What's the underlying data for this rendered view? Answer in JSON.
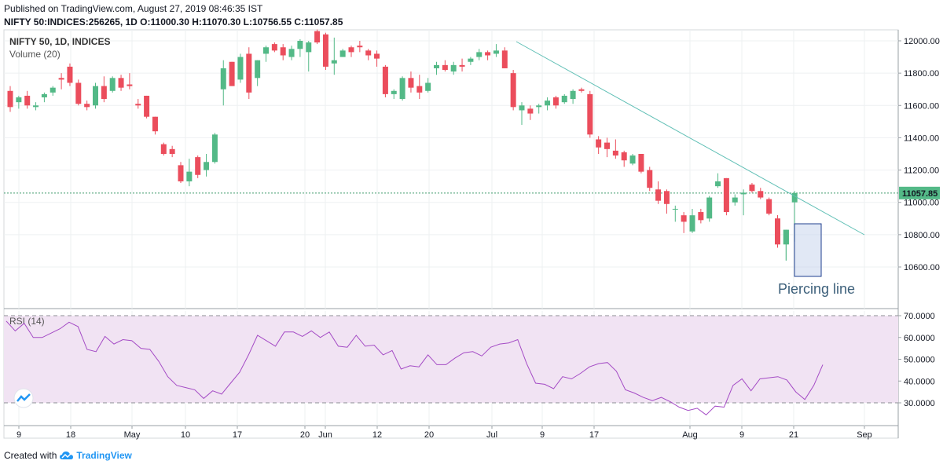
{
  "header": {
    "published_line": "Published on TradingView.com, August 27, 2019 08:46:35 IST",
    "symbol_line": "NIFTY 50:INDICES:256265, 1D  O:11000.30 H:11070.30 L:10756.55 C:11057.85"
  },
  "footer": {
    "created_with": "Created with",
    "brand": "TradingView"
  },
  "colors": {
    "up": "#53b987",
    "down": "#eb4d5c",
    "trendline": "#5fbfb5",
    "rsi_line": "#a44bc5",
    "rsi_band": "#f1e3f3",
    "price_line": "#3d9b6b",
    "box_fill": "#c8d6ec",
    "box_border": "#1f3f8f"
  },
  "chart_data": [
    {
      "type": "candlestick",
      "title": "NIFTY 50, 1D, INDICES",
      "subtitle": "Volume (20)",
      "ylim": [
        10500,
        12070
      ],
      "y_ticks": [
        "12000.00",
        "11800.00",
        "11600.00",
        "11400.00",
        "11200.00",
        "11000.00",
        "10800.00",
        "10600.00"
      ],
      "x_ticks": [
        "9",
        "18",
        "May",
        "10",
        "17",
        "20",
        "Jun",
        "12",
        "20",
        "Jul",
        "9",
        "17",
        "Aug",
        "9",
        "21",
        "Sep"
      ],
      "last_price_label": "11057.85",
      "last_price": 11057.85,
      "annotation": "Piercing line",
      "candles": [
        {
          "o": 11690,
          "h": 11720,
          "l": 11560,
          "c": 11590
        },
        {
          "o": 11620,
          "h": 11660,
          "l": 11580,
          "c": 11650
        },
        {
          "o": 11660,
          "h": 11690,
          "l": 11580,
          "c": 11600
        },
        {
          "o": 11590,
          "h": 11620,
          "l": 11570,
          "c": 11600
        },
        {
          "o": 11650,
          "h": 11680,
          "l": 11620,
          "c": 11670
        },
        {
          "o": 11680,
          "h": 11720,
          "l": 11660,
          "c": 11710
        },
        {
          "o": 11770,
          "h": 11800,
          "l": 11700,
          "c": 11760
        },
        {
          "o": 11840,
          "h": 11860,
          "l": 11720,
          "c": 11740
        },
        {
          "o": 11740,
          "h": 11760,
          "l": 11600,
          "c": 11610
        },
        {
          "o": 11610,
          "h": 11630,
          "l": 11570,
          "c": 11590
        },
        {
          "o": 11600,
          "h": 11740,
          "l": 11580,
          "c": 11720
        },
        {
          "o": 11720,
          "h": 11780,
          "l": 11620,
          "c": 11640
        },
        {
          "o": 11690,
          "h": 11780,
          "l": 11680,
          "c": 11770
        },
        {
          "o": 11770,
          "h": 11790,
          "l": 11690,
          "c": 11710
        },
        {
          "o": 11730,
          "h": 11800,
          "l": 11700,
          "c": 11720
        },
        {
          "o": 11610,
          "h": 11640,
          "l": 11580,
          "c": 11600
        },
        {
          "o": 11660,
          "h": 11660,
          "l": 11520,
          "c": 11530
        },
        {
          "o": 11530,
          "h": 11530,
          "l": 11420,
          "c": 11440
        },
        {
          "o": 11360,
          "h": 11370,
          "l": 11290,
          "c": 11300
        },
        {
          "o": 11330,
          "h": 11350,
          "l": 11280,
          "c": 11300
        },
        {
          "o": 11230,
          "h": 11250,
          "l": 11120,
          "c": 11130
        },
        {
          "o": 11130,
          "h": 11270,
          "l": 11100,
          "c": 11190
        },
        {
          "o": 11280,
          "h": 11290,
          "l": 11150,
          "c": 11170
        },
        {
          "o": 11200,
          "h": 11300,
          "l": 11160,
          "c": 11250
        },
        {
          "o": 11250,
          "h": 11430,
          "l": 11240,
          "c": 11420
        },
        {
          "o": 11700,
          "h": 11880,
          "l": 11600,
          "c": 11830
        },
        {
          "o": 11870,
          "h": 11870,
          "l": 11720,
          "c": 11720
        },
        {
          "o": 11760,
          "h": 11920,
          "l": 11740,
          "c": 11900
        },
        {
          "o": 11920,
          "h": 11960,
          "l": 11640,
          "c": 11680
        },
        {
          "o": 11770,
          "h": 11880,
          "l": 11720,
          "c": 11880
        },
        {
          "o": 11920,
          "h": 11970,
          "l": 11870,
          "c": 11960
        },
        {
          "o": 11980,
          "h": 11990,
          "l": 11930,
          "c": 11940
        },
        {
          "o": 11960,
          "h": 11980,
          "l": 11880,
          "c": 11910
        },
        {
          "o": 11900,
          "h": 11970,
          "l": 11880,
          "c": 11950
        },
        {
          "o": 11950,
          "h": 12010,
          "l": 11900,
          "c": 12000
        },
        {
          "o": 11930,
          "h": 12000,
          "l": 11810,
          "c": 11990
        },
        {
          "o": 12060,
          "h": 12070,
          "l": 11980,
          "c": 11990
        },
        {
          "o": 12040,
          "h": 12050,
          "l": 11820,
          "c": 11840
        },
        {
          "o": 11860,
          "h": 12020,
          "l": 11790,
          "c": 11880
        },
        {
          "o": 11900,
          "h": 11950,
          "l": 11900,
          "c": 11940
        },
        {
          "o": 11960,
          "h": 11970,
          "l": 11900,
          "c": 11930
        },
        {
          "o": 11970,
          "h": 12000,
          "l": 11930,
          "c": 11960
        },
        {
          "o": 11940,
          "h": 11950,
          "l": 11880,
          "c": 11910
        },
        {
          "o": 11920,
          "h": 11940,
          "l": 11840,
          "c": 11890
        },
        {
          "o": 11840,
          "h": 11850,
          "l": 11650,
          "c": 11670
        },
        {
          "o": 11670,
          "h": 11700,
          "l": 11640,
          "c": 11690
        },
        {
          "o": 11640,
          "h": 11780,
          "l": 11630,
          "c": 11770
        },
        {
          "o": 11770,
          "h": 11810,
          "l": 11680,
          "c": 11710
        },
        {
          "o": 11720,
          "h": 11790,
          "l": 11640,
          "c": 11680
        },
        {
          "o": 11690,
          "h": 11770,
          "l": 11680,
          "c": 11740
        },
        {
          "o": 11830,
          "h": 11870,
          "l": 11790,
          "c": 11850
        },
        {
          "o": 11850,
          "h": 11880,
          "l": 11810,
          "c": 11820
        },
        {
          "o": 11810,
          "h": 11870,
          "l": 11790,
          "c": 11850
        },
        {
          "o": 11850,
          "h": 11890,
          "l": 11810,
          "c": 11840
        },
        {
          "o": 11870,
          "h": 11900,
          "l": 11850,
          "c": 11890
        },
        {
          "o": 11900,
          "h": 11950,
          "l": 11880,
          "c": 11930
        },
        {
          "o": 11930,
          "h": 11940,
          "l": 11880,
          "c": 11910
        },
        {
          "o": 11920,
          "h": 11980,
          "l": 11900,
          "c": 11940
        },
        {
          "o": 11940,
          "h": 11960,
          "l": 11830,
          "c": 11830
        },
        {
          "o": 11800,
          "h": 11820,
          "l": 11570,
          "c": 11590
        },
        {
          "o": 11570,
          "h": 11620,
          "l": 11480,
          "c": 11600
        },
        {
          "o": 11580,
          "h": 11600,
          "l": 11510,
          "c": 11550
        },
        {
          "o": 11590,
          "h": 11610,
          "l": 11550,
          "c": 11600
        },
        {
          "o": 11600,
          "h": 11650,
          "l": 11570,
          "c": 11630
        },
        {
          "o": 11650,
          "h": 11660,
          "l": 11580,
          "c": 11600
        },
        {
          "o": 11620,
          "h": 11670,
          "l": 11610,
          "c": 11660
        },
        {
          "o": 11640,
          "h": 11700,
          "l": 11610,
          "c": 11690
        },
        {
          "o": 11700,
          "h": 11710,
          "l": 11680,
          "c": 11690
        },
        {
          "o": 11670,
          "h": 11690,
          "l": 11400,
          "c": 11420
        },
        {
          "o": 11390,
          "h": 11410,
          "l": 11300,
          "c": 11340
        },
        {
          "o": 11370,
          "h": 11400,
          "l": 11280,
          "c": 11330
        },
        {
          "o": 11320,
          "h": 11390,
          "l": 11270,
          "c": 11290
        },
        {
          "o": 11310,
          "h": 11320,
          "l": 11220,
          "c": 11260
        },
        {
          "o": 11240,
          "h": 11300,
          "l": 11230,
          "c": 11290
        },
        {
          "o": 11300,
          "h": 11300,
          "l": 11180,
          "c": 11190
        },
        {
          "o": 11200,
          "h": 11220,
          "l": 11070,
          "c": 11090
        },
        {
          "o": 11080,
          "h": 11130,
          "l": 10990,
          "c": 11010
        },
        {
          "o": 11070,
          "h": 11080,
          "l": 10930,
          "c": 10990
        },
        {
          "o": 10960,
          "h": 10980,
          "l": 10880,
          "c": 10960
        },
        {
          "o": 10920,
          "h": 10940,
          "l": 10810,
          "c": 10880
        },
        {
          "o": 10820,
          "h": 10960,
          "l": 10810,
          "c": 10920
        },
        {
          "o": 10940,
          "h": 10960,
          "l": 10870,
          "c": 10890
        },
        {
          "o": 10900,
          "h": 11040,
          "l": 10880,
          "c": 11030
        },
        {
          "o": 11100,
          "h": 11180,
          "l": 11090,
          "c": 11130
        },
        {
          "o": 11150,
          "h": 11150,
          "l": 10920,
          "c": 10940
        },
        {
          "o": 11000,
          "h": 11050,
          "l": 10980,
          "c": 11030
        },
        {
          "o": 11050,
          "h": 11080,
          "l": 10920,
          "c": 11060
        },
        {
          "o": 11110,
          "h": 11120,
          "l": 11060,
          "c": 11070
        },
        {
          "o": 11070,
          "h": 11090,
          "l": 11020,
          "c": 11030
        },
        {
          "o": 11020,
          "h": 11030,
          "l": 10920,
          "c": 10930
        },
        {
          "o": 10900,
          "h": 10920,
          "l": 10720,
          "c": 10740
        },
        {
          "o": 10740,
          "h": 10830,
          "l": 10640,
          "c": 10830
        },
        {
          "o": 11000.3,
          "h": 11070.3,
          "l": 10756.55,
          "c": 11057.85
        }
      ]
    },
    {
      "type": "line",
      "title": "RSI (14)",
      "ylim": [
        20,
        73
      ],
      "y_ticks": [
        "70.0000",
        "60.0000",
        "50.0000",
        "40.0000",
        "30.0000"
      ],
      "bands": [
        30,
        70
      ],
      "values": [
        67.5,
        63,
        66.5,
        60,
        60,
        62,
        64,
        67,
        65,
        54.5,
        53.5,
        60.5,
        57,
        59,
        58.5,
        55,
        54.5,
        49,
        42,
        38,
        37,
        36,
        32,
        35.5,
        34,
        39,
        44,
        52,
        61,
        58.5,
        56,
        62.5,
        62.5,
        60.5,
        63,
        60,
        62.5,
        56,
        55.5,
        61,
        56,
        56.5,
        52,
        54,
        45.5,
        47,
        46.5,
        52,
        47.5,
        47.5,
        50.5,
        53,
        53.5,
        51.5,
        55.5,
        57,
        57.5,
        59,
        48,
        39,
        38.5,
        36.5,
        42,
        41,
        43.5,
        46.5,
        48,
        48.5,
        44.5,
        36,
        34.5,
        32.5,
        31,
        32.5,
        30.5,
        28,
        26.5,
        27.5,
        24.5,
        28.5,
        28,
        38,
        41,
        35.5,
        41,
        41.5,
        42,
        40.5,
        35,
        31.5,
        38,
        47.5
      ]
    }
  ]
}
